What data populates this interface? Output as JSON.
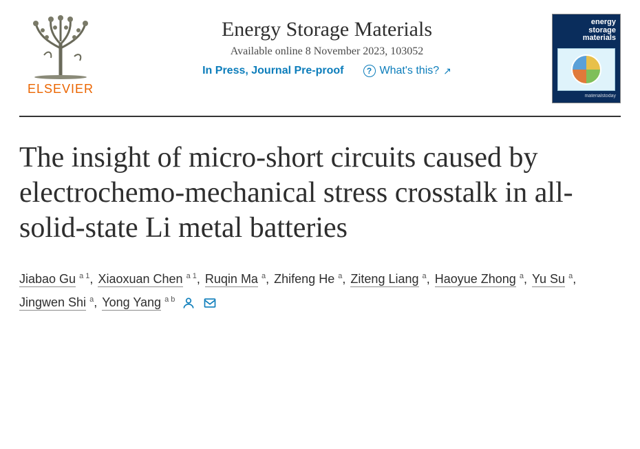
{
  "publisher": {
    "name": "ELSEVIER",
    "brand_color": "#eb6500"
  },
  "journal": {
    "title": "Energy Storage Materials",
    "availability": "Available online 8 November 2023, 103052",
    "status": "In Press, Journal Pre-proof",
    "whats_this": "What's this?",
    "cover_title_line1": "energy",
    "cover_title_line2": "storage",
    "cover_title_line3": "materials"
  },
  "article": {
    "title": "The insight of micro-short circuits caused by electrochemo-mechanical stress crosstalk in all-solid-state Li metal batteries"
  },
  "authors": [
    {
      "name": "Jiabao Gu",
      "aff": "a 1",
      "linked": true
    },
    {
      "name": "Xiaoxuan Chen",
      "aff": "a 1",
      "linked": true
    },
    {
      "name": "Ruqin Ma",
      "aff": "a",
      "linked": true
    },
    {
      "name": "Zhifeng He",
      "aff": "a",
      "linked": false
    },
    {
      "name": "Ziteng Liang",
      "aff": "a",
      "linked": true
    },
    {
      "name": "Haoyue Zhong",
      "aff": "a",
      "linked": true
    },
    {
      "name": "Yu Su",
      "aff": "a",
      "linked": true
    },
    {
      "name": "Jingwen Shi",
      "aff": "a",
      "linked": true
    },
    {
      "name": "Yong Yang",
      "aff": "a b",
      "linked": true,
      "corresponding": true
    }
  ],
  "colors": {
    "link": "#0c7dbb",
    "text": "#2e2e2e",
    "cover_bg": "#0a2d5c",
    "rule": "#333333"
  }
}
